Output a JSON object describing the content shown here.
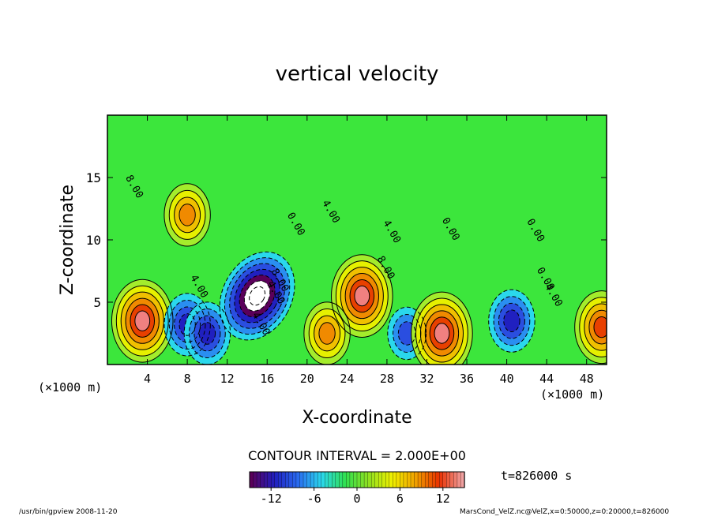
{
  "chart_data": {
    "type": "contour",
    "title": "vertical velocity",
    "xlabel": "X-coordinate",
    "ylabel": "Z-coordinate",
    "x_unit_left": "(×1000 m)",
    "x_unit_right": "(×1000 m)",
    "xlim": [
      0,
      50
    ],
    "ylim": [
      0,
      20
    ],
    "x_ticks": [
      4,
      8,
      12,
      16,
      20,
      24,
      28,
      32,
      36,
      40,
      44,
      48
    ],
    "y_ticks": [
      5,
      10,
      15
    ],
    "contour_interval_label": "CONTOUR INTERVAL = 2.000E+00",
    "contour_labels": [
      "8.00",
      "4.00",
      "4.00",
      "4.00",
      "8.00",
      "4.00",
      "8.00",
      "4.00",
      "0.00",
      "0.00",
      "0.00",
      "4.00",
      "0.00"
    ],
    "colorbar": {
      "range": [
        -15,
        15
      ],
      "ticks": [
        -12,
        -6,
        0,
        6,
        12
      ],
      "colors": [
        "#5a005a",
        "#2020c0",
        "#2a6cf0",
        "#2ad8ec",
        "#30e050",
        "#90e020",
        "#f0f000",
        "#f0a000",
        "#e83000",
        "#f0a0a0"
      ]
    },
    "features": [
      {
        "x": 3.5,
        "z": 3.5,
        "value": 12,
        "sign": "positive"
      },
      {
        "x": 8,
        "z": 3.2,
        "value": -8,
        "sign": "negative"
      },
      {
        "x": 10,
        "z": 2.5,
        "value": -8,
        "sign": "negative"
      },
      {
        "x": 15,
        "z": 5.5,
        "value": -14,
        "sign": "negative"
      },
      {
        "x": 8,
        "z": 12,
        "value": 8,
        "sign": "positive"
      },
      {
        "x": 25.5,
        "z": 5.5,
        "value": 12,
        "sign": "positive"
      },
      {
        "x": 22,
        "z": 2.5,
        "value": 8,
        "sign": "positive"
      },
      {
        "x": 30,
        "z": 2.5,
        "value": -6,
        "sign": "negative"
      },
      {
        "x": 33.5,
        "z": 2.5,
        "value": 12,
        "sign": "positive"
      },
      {
        "x": 40.5,
        "z": 3.5,
        "value": -8,
        "sign": "negative"
      },
      {
        "x": 49.5,
        "z": 3,
        "value": 10,
        "sign": "positive"
      }
    ],
    "time_label": "t=826000 s"
  },
  "footer": {
    "left": "/usr/bin/gpview  2008-11-20",
    "right": "MarsCond_VelZ.nc@VelZ,x=0:50000,z=0:20000,t=826000"
  }
}
